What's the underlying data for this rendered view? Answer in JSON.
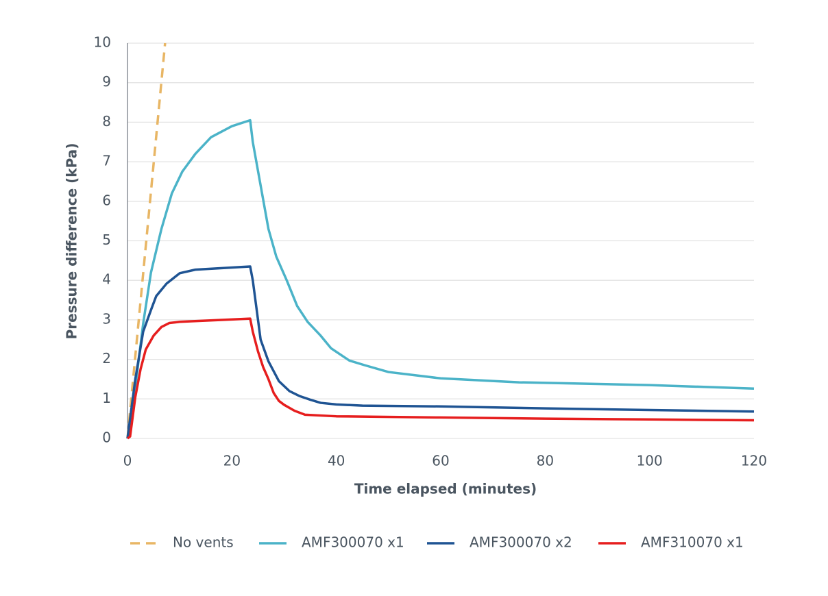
{
  "chart_data": {
    "type": "line",
    "x_label": "Time elapsed (minutes)",
    "y_label": "Pressure difference (kPa)",
    "xlim": [
      0,
      120
    ],
    "xticks": [
      0,
      20,
      40,
      60,
      80,
      100,
      120
    ],
    "ylim": [
      0,
      10
    ],
    "yticks": [
      0,
      1,
      2,
      3,
      4,
      5,
      6,
      7,
      8,
      9,
      10
    ],
    "grid": true,
    "legend": "bottom",
    "series": [
      {
        "name": "No vents",
        "color": "#e8b665",
        "dashed": true,
        "x": [
          0,
          7.2
        ],
        "values": [
          0,
          10
        ]
      },
      {
        "name": "AMF300070 x1",
        "color": "#4bb3c8",
        "x": [
          0,
          1.5,
          3,
          4.5,
          6.5,
          8.5,
          10.5,
          13,
          16,
          20,
          23.5,
          24,
          25.5,
          27,
          28.5,
          30.5,
          32.5,
          34.5,
          37,
          39,
          42.5,
          45.5,
          50,
          60,
          75,
          100,
          120
        ],
        "values": [
          0,
          1.3,
          2.9,
          4.2,
          5.3,
          6.2,
          6.75,
          7.2,
          7.62,
          7.9,
          8.05,
          7.5,
          6.4,
          5.3,
          4.6,
          4.0,
          3.35,
          2.95,
          2.6,
          2.28,
          1.97,
          1.85,
          1.68,
          1.52,
          1.42,
          1.35,
          1.26
        ]
      },
      {
        "name": "AMF300070 x2",
        "color": "#1f5493",
        "x": [
          0,
          1.5,
          3,
          4.5,
          5.5,
          7.5,
          10,
          13,
          23.5,
          24,
          24.5,
          25.5,
          27,
          29,
          31,
          33,
          35,
          37,
          40,
          45,
          60,
          80,
          100,
          120
        ],
        "values": [
          0,
          1.5,
          2.7,
          3.25,
          3.6,
          3.92,
          4.18,
          4.27,
          4.35,
          4.0,
          3.5,
          2.5,
          1.95,
          1.45,
          1.2,
          1.07,
          0.98,
          0.9,
          0.86,
          0.83,
          0.81,
          0.76,
          0.72,
          0.68
        ]
      },
      {
        "name": "AMF310070 x1",
        "color": "#e61e1e",
        "x": [
          0,
          0.5,
          1.5,
          2.5,
          3.5,
          5,
          6.5,
          8,
          10,
          23.5,
          24,
          25,
          26,
          27,
          28,
          29,
          30,
          32,
          34,
          40,
          60,
          80,
          100,
          120
        ],
        "values": [
          0,
          0.05,
          1.05,
          1.75,
          2.25,
          2.6,
          2.82,
          2.92,
          2.95,
          3.03,
          2.7,
          2.2,
          1.8,
          1.5,
          1.15,
          0.95,
          0.85,
          0.7,
          0.6,
          0.56,
          0.53,
          0.5,
          0.48,
          0.46
        ]
      }
    ]
  }
}
